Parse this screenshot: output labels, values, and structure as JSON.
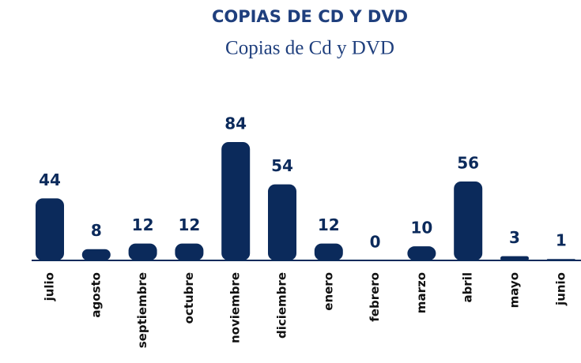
{
  "chart_data": {
    "type": "bar",
    "title": "COPIAS DE CD Y DVD",
    "subtitle": "Copias de Cd y DVD",
    "categories": [
      "julio",
      "agosto",
      "septiembre",
      "octubre",
      "noviembre",
      "diciembre",
      "enero",
      "febrero",
      "marzo",
      "abril",
      "mayo",
      "junio"
    ],
    "values": [
      44,
      8,
      12,
      12,
      84,
      54,
      12,
      0,
      10,
      56,
      3,
      1
    ],
    "color": "#0b2a5b"
  }
}
